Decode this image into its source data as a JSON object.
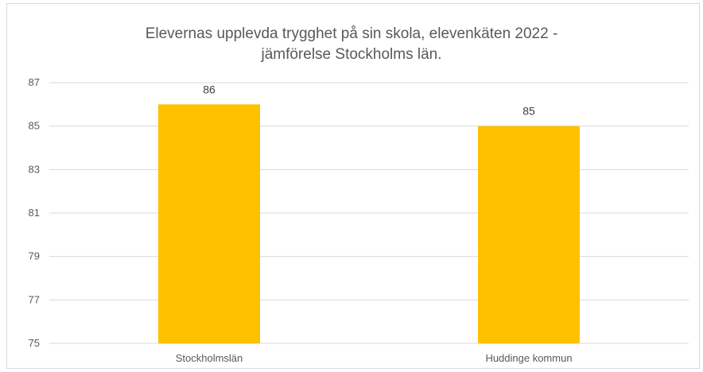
{
  "chart_data": {
    "type": "bar",
    "title": "Elevernas upplevda trygghet på sin skola, elevenkäten 2022 -\njämförelse Stockholms län.",
    "categories": [
      "Stockholmslän",
      "Huddinge kommun"
    ],
    "values": [
      86,
      85
    ],
    "data_labels": [
      "86",
      "85"
    ],
    "ylim": [
      75,
      87
    ],
    "yticks": [
      "75",
      "77",
      "79",
      "81",
      "83",
      "85",
      "87"
    ],
    "xlabel": "",
    "ylabel": "",
    "grid": true,
    "legend": "none",
    "bar_color": "#ffc000",
    "grid_color": "#d9d9d9"
  }
}
